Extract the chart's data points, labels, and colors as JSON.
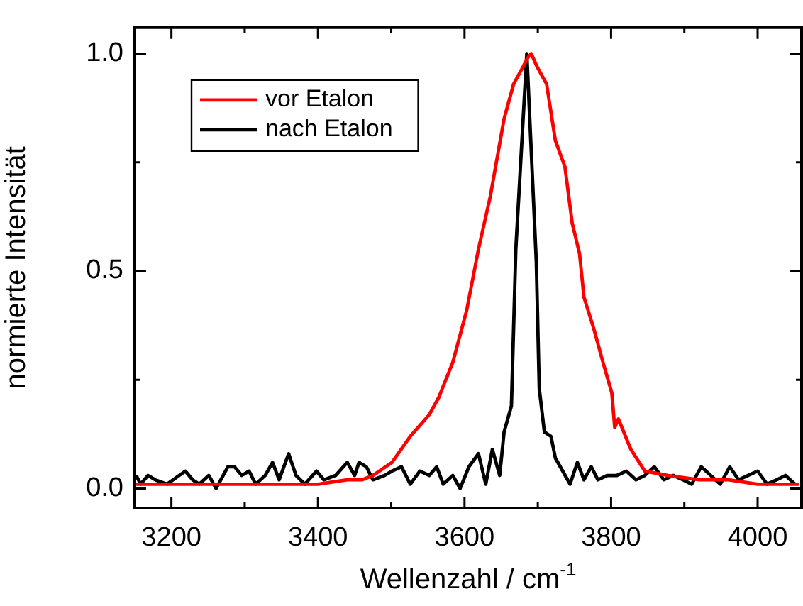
{
  "chart_data": {
    "type": "line",
    "xlabel": "Wellenzahl / cm$^{-1}$",
    "ylabel": "normierte Intensität",
    "xlim": [
      3150,
      4060
    ],
    "ylim": [
      -0.045,
      1.06
    ],
    "xticks": [
      3200,
      {
        "value": 3300,
        "label": null
      },
      3400,
      {
        "value": 3500,
        "label": null
      },
      3600,
      {
        "value": 3700,
        "label": null
      },
      3800,
      {
        "value": 3900,
        "label": null
      },
      4000
    ],
    "yticks": [
      {
        "value": 0,
        "label": "0.0"
      },
      {
        "value": 0.25,
        "label": null
      },
      {
        "value": 0.5,
        "label": "0.5"
      },
      {
        "value": 0.75,
        "label": null
      },
      {
        "value": 1,
        "label": "1.0"
      }
    ],
    "grid": false,
    "legend": "top left",
    "marker": "none",
    "line_style": "solid",
    "series": [
      {
        "name": "vor Etalon",
        "color": "#ff0000",
        "x": [
          3152,
          3200,
          3250,
          3300,
          3350,
          3400,
          3440,
          3460,
          3475,
          3501,
          3526,
          3552,
          3565,
          3584,
          3603,
          3619,
          3635,
          3654,
          3667,
          3680,
          3686,
          3691,
          3699,
          3712,
          3724,
          3737,
          3747,
          3757,
          3763,
          3776,
          3789,
          3801,
          3805,
          3810,
          3827,
          3846,
          3878,
          3920,
          3960,
          4000,
          4056
        ],
        "values": [
          0.01,
          0.01,
          0.01,
          0.01,
          0.01,
          0.01,
          0.02,
          0.02,
          0.03,
          0.06,
          0.12,
          0.17,
          0.21,
          0.29,
          0.41,
          0.55,
          0.67,
          0.85,
          0.93,
          0.97,
          0.99,
          1.0,
          0.97,
          0.93,
          0.8,
          0.74,
          0.61,
          0.54,
          0.44,
          0.37,
          0.29,
          0.22,
          0.14,
          0.16,
          0.09,
          0.04,
          0.03,
          0.02,
          0.02,
          0.01,
          0.01
        ]
      },
      {
        "name": "nach Etalon",
        "color": "#000000",
        "x": [
          3152,
          3158,
          3168,
          3178,
          3194,
          3219,
          3229,
          3238,
          3251,
          3261,
          3277,
          3286,
          3296,
          3306,
          3315,
          3328,
          3338,
          3347,
          3360,
          3370,
          3382,
          3398,
          3408,
          3424,
          3440,
          3450,
          3456,
          3466,
          3475,
          3491,
          3501,
          3514,
          3526,
          3539,
          3552,
          3562,
          3571,
          3584,
          3594,
          3606,
          3619,
          3629,
          3638,
          3648,
          3654,
          3664,
          3670,
          3685,
          3698,
          3702,
          3709,
          3718,
          3724,
          3744,
          3754,
          3763,
          3773,
          3782,
          3795,
          3808,
          3821,
          3834,
          3846,
          3859,
          3872,
          3885,
          3898,
          3910,
          3923,
          3936,
          3949,
          3962,
          3974,
          3987,
          4000,
          4013,
          4026,
          4038,
          4051
        ],
        "values": [
          0.03,
          0.01,
          0.03,
          0.02,
          0.01,
          0.04,
          0.02,
          0.01,
          0.03,
          0.0,
          0.05,
          0.05,
          0.03,
          0.04,
          0.01,
          0.03,
          0.06,
          0.02,
          0.08,
          0.03,
          0.01,
          0.04,
          0.02,
          0.03,
          0.06,
          0.03,
          0.06,
          0.05,
          0.02,
          0.03,
          0.04,
          0.05,
          0.01,
          0.04,
          0.03,
          0.05,
          0.01,
          0.03,
          0.0,
          0.05,
          0.08,
          0.01,
          0.09,
          0.03,
          0.13,
          0.19,
          0.55,
          1.0,
          0.52,
          0.23,
          0.13,
          0.12,
          0.07,
          0.01,
          0.06,
          0.02,
          0.05,
          0.02,
          0.03,
          0.03,
          0.04,
          0.02,
          0.03,
          0.05,
          0.02,
          0.03,
          0.02,
          0.01,
          0.05,
          0.03,
          0.01,
          0.05,
          0.02,
          0.03,
          0.04,
          0.01,
          0.02,
          0.03,
          0.01
        ]
      }
    ]
  }
}
